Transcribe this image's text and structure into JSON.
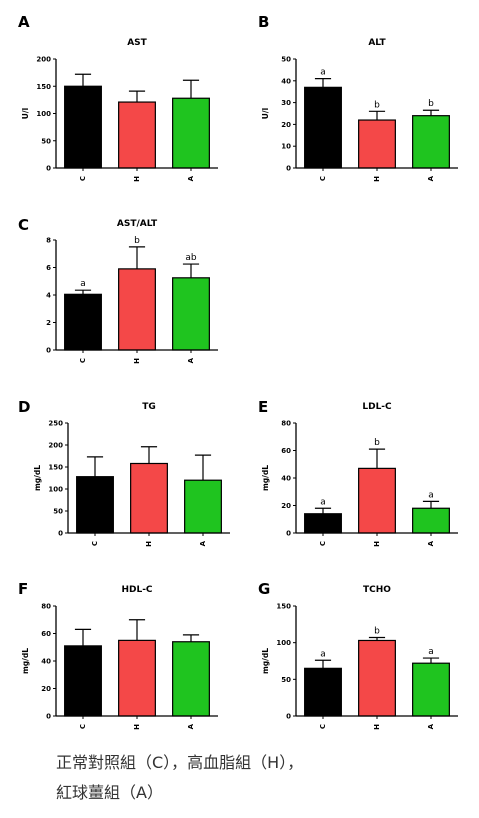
{
  "chart_data": [
    {
      "type": "bar",
      "panel_label": "A",
      "title": "AST",
      "ylabel": "U/l",
      "categories": [
        "C",
        "H",
        "A"
      ],
      "values": [
        150,
        121,
        128
      ],
      "errors": [
        22,
        20,
        33
      ],
      "letters": [
        "",
        "",
        ""
      ],
      "ylim": [
        0,
        200
      ],
      "yticks": [
        "0",
        "50",
        "100",
        "150",
        "200"
      ],
      "grid": false
    },
    {
      "type": "bar",
      "panel_label": "B",
      "title": "ALT",
      "ylabel": "U/l",
      "categories": [
        "C",
        "H",
        "A"
      ],
      "values": [
        37,
        22,
        24
      ],
      "errors": [
        4,
        4,
        2.5
      ],
      "letters": [
        "a",
        "b",
        "b"
      ],
      "ylim": [
        0,
        50
      ],
      "yticks": [
        "0",
        "10",
        "20",
        "30",
        "40",
        "50"
      ],
      "grid": false
    },
    {
      "type": "bar",
      "panel_label": "C",
      "title": "AST/ALT",
      "ylabel": "",
      "categories": [
        "C",
        "H",
        "A"
      ],
      "values": [
        4.05,
        5.9,
        5.25
      ],
      "errors": [
        0.3,
        1.6,
        1.0
      ],
      "letters": [
        "a",
        "b",
        "ab"
      ],
      "ylim": [
        0,
        8
      ],
      "yticks": [
        "0",
        "2",
        "4",
        "6",
        "8"
      ],
      "grid": false
    },
    {
      "type": "bar",
      "panel_label": "D",
      "title": "TG",
      "ylabel": "mg/dL",
      "categories": [
        "C",
        "H",
        "A"
      ],
      "values": [
        128,
        158,
        120
      ],
      "errors": [
        45,
        38,
        57
      ],
      "letters": [
        "",
        "",
        ""
      ],
      "ylim": [
        0,
        250
      ],
      "yticks": [
        "0",
        "50",
        "100",
        "150",
        "200",
        "250"
      ],
      "grid": false
    },
    {
      "type": "bar",
      "panel_label": "E",
      "title": "LDL-C",
      "ylabel": "mg/dL",
      "categories": [
        "C",
        "H",
        "A"
      ],
      "values": [
        14,
        47,
        18
      ],
      "errors": [
        4,
        14,
        5
      ],
      "letters": [
        "a",
        "b",
        "a"
      ],
      "ylim": [
        0,
        80
      ],
      "yticks": [
        "0",
        "20",
        "40",
        "60",
        "80"
      ],
      "grid": false
    },
    {
      "type": "bar",
      "panel_label": "F",
      "title": "HDL-C",
      "ylabel": "mg/dL",
      "categories": [
        "C",
        "H",
        "A"
      ],
      "values": [
        51,
        55,
        54
      ],
      "errors": [
        12,
        15,
        5
      ],
      "letters": [
        "",
        "",
        ""
      ],
      "ylim": [
        0,
        80
      ],
      "yticks": [
        "0",
        "20",
        "40",
        "60",
        "80"
      ],
      "grid": false
    },
    {
      "type": "bar",
      "panel_label": "G",
      "title": "TCHO",
      "ylabel": "mg/dL",
      "categories": [
        "C",
        "H",
        "A"
      ],
      "values": [
        65,
        103,
        72
      ],
      "errors": [
        11,
        4,
        7
      ],
      "letters": [
        "a",
        "b",
        "a"
      ],
      "ylim": [
        0,
        150
      ],
      "yticks": [
        "0",
        "50",
        "100",
        "150"
      ],
      "grid": false
    }
  ],
  "colors": {
    "C": "#000000",
    "H": "#f44848",
    "A": "#1fc41f",
    "axis": "#000000"
  },
  "caption": {
    "line1": "正常對照組（C），高血脂組（H），",
    "line2": "紅球薑組（A）"
  }
}
